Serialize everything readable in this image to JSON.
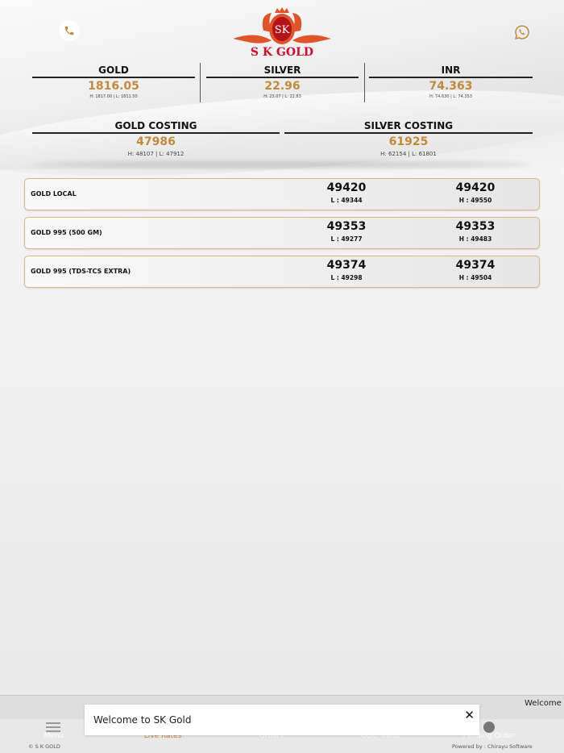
{
  "brand": {
    "name": "S K GOLD",
    "logo_monogram": "SK"
  },
  "colors": {
    "accent": "#c08a3c",
    "brand_red": "#c8102e",
    "border": "#d9b58a"
  },
  "header": {
    "phone_icon": "phone-icon",
    "whatsapp_icon": "whatsapp-icon"
  },
  "stats": [
    {
      "title": "GOLD",
      "value": "1816.05",
      "hl": "H: 1817.00 | L: 1811.50"
    },
    {
      "title": "SILVER",
      "value": "22.96",
      "hl": "H: 23.07 | L: 22.83"
    },
    {
      "title": "INR",
      "value": "74.363",
      "hl": "H: 74.630 | L: 74.353"
    }
  ],
  "costing": [
    {
      "title": "GOLD COSTING",
      "value": "47986",
      "hl": "H: 48107 | L: 47912"
    },
    {
      "title": "SILVER COSTING",
      "value": "61925",
      "hl": "H: 62154 | L: 61801"
    }
  ],
  "rates": [
    {
      "name": "GOLD LOCAL",
      "buy": "49420",
      "low": "L : 49344",
      "sell": "49420",
      "high": "H : 49550"
    },
    {
      "name": "GOLD 995 (500 GM)",
      "buy": "49353",
      "low": "L : 49277",
      "sell": "49353",
      "high": "H : 49483"
    },
    {
      "name": "GOLD 995 (TDS-TCS EXTRA)",
      "buy": "49374",
      "low": "L : 49298",
      "sell": "49374",
      "high": "H : 49504"
    }
  ],
  "marquee": "Welcome",
  "nav": {
    "items": [
      {
        "label": "Menu"
      },
      {
        "label": "Live Rates"
      },
      {
        "label": "Orders"
      },
      {
        "label": "Gold Trend"
      },
      {
        "label": "Pending Order"
      }
    ]
  },
  "footer": {
    "copyright": "© S K GOLD",
    "powered": "Powered by : Chirayu Software"
  },
  "toast": {
    "message": "Welcome to SK Gold",
    "close": "✕"
  }
}
